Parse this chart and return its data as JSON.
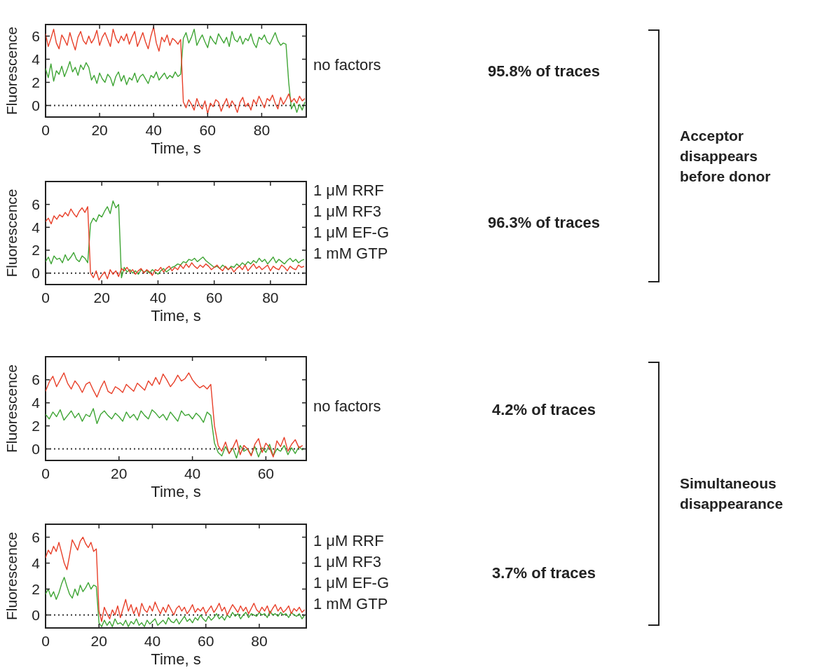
{
  "chart_data": [
    {
      "type": "line",
      "xlabel": "Time, s",
      "ylabel": "Fluorescence",
      "xlim": [
        0,
        96.5
      ],
      "ylim": [
        -1,
        7
      ],
      "xticks": [
        0,
        20,
        40,
        60,
        80
      ],
      "yticks": [
        0,
        2,
        4,
        6
      ],
      "ref_lines": [
        {
          "axis": "y",
          "value": 0,
          "color": "#333333",
          "line_style": "dotted"
        }
      ],
      "annotations": [
        "no factors",
        "95.8% of traces",
        "Acceptor\ndisappears\nbefore donor"
      ],
      "x": [
        0,
        1,
        2,
        3,
        4,
        5,
        6,
        7,
        8,
        9,
        10,
        11,
        12,
        13,
        14,
        15,
        16,
        17,
        18,
        19,
        20,
        21,
        22,
        23,
        24,
        25,
        26,
        27,
        28,
        29,
        30,
        31,
        32,
        33,
        34,
        35,
        36,
        37,
        38,
        39,
        40,
        41,
        42,
        43,
        44,
        45,
        46,
        47,
        48,
        49,
        50,
        51,
        52,
        53,
        54,
        55,
        56,
        57,
        58,
        59,
        60,
        61,
        62,
        63,
        64,
        65,
        66,
        67,
        68,
        69,
        70,
        71,
        72,
        73,
        74,
        75,
        76,
        77,
        78,
        79,
        80,
        81,
        82,
        83,
        84,
        85,
        86,
        87,
        88,
        89,
        90,
        91,
        92,
        93,
        94,
        95,
        96
      ],
      "series": [
        {
          "color": "#3fa535",
          "values": [
            3.2,
            2.4,
            3.6,
            2.1,
            3.0,
            2.7,
            3.4,
            2.5,
            3.1,
            3.8,
            2.9,
            3.3,
            2.6,
            3.5,
            3.1,
            3.7,
            3.3,
            2.2,
            2.6,
            1.9,
            2.8,
            2.3,
            2.0,
            2.7,
            2.4,
            1.7,
            2.5,
            2.9,
            2.1,
            2.6,
            1.8,
            2.4,
            2.2,
            2.8,
            2.0,
            2.5,
            2.7,
            2.3,
            1.9,
            2.6,
            2.4,
            2.9,
            2.2,
            2.5,
            2.8,
            2.3,
            2.6,
            2.4,
            2.9,
            2.5,
            2.7,
            5.8,
            6.3,
            5.4,
            5.9,
            6.6,
            5.2,
            5.7,
            6.1,
            5.5,
            5.0,
            6.0,
            5.6,
            5.3,
            6.2,
            5.8,
            5.4,
            5.9,
            5.1,
            6.4,
            5.7,
            5.5,
            6.0,
            5.3,
            5.8,
            5.6,
            6.2,
            5.4,
            5.0,
            5.9,
            5.7,
            6.1,
            5.5,
            5.3,
            5.8,
            6.3,
            5.6,
            5.2,
            5.4,
            5.3,
            2.0,
            -0.3,
            0.2,
            -0.6,
            0.1,
            -0.4,
            0.3
          ]
        },
        {
          "color": "#e8402a",
          "values": [
            6.2,
            5.1,
            5.8,
            6.6,
            5.4,
            4.9,
            6.1,
            5.7,
            5.2,
            6.3,
            5.5,
            4.8,
            5.9,
            6.4,
            5.6,
            5.3,
            6.0,
            5.4,
            5.8,
            6.5,
            5.2,
            5.9,
            6.3,
            5.7,
            5.1,
            6.6,
            5.8,
            5.4,
            6.0,
            5.6,
            6.2,
            5.3,
            5.9,
            6.4,
            5.1,
            5.7,
            6.3,
            5.5,
            4.9,
            6.0,
            6.8,
            5.4,
            4.7,
            5.9,
            5.5,
            6.1,
            5.2,
            5.8,
            5.6,
            5.3,
            5.7,
            0.3,
            -0.2,
            0.5,
            0.1,
            -0.4,
            0.6,
            0.0,
            -0.3,
            0.4,
            -0.7,
            0.2,
            -0.1,
            0.5,
            0.3,
            -0.5,
            0.1,
            0.6,
            -0.2,
            0.4,
            0.0,
            -0.6,
            0.3,
            0.7,
            -0.1,
            0.2,
            -0.4,
            0.5,
            0.1,
            0.8,
            0.3,
            -0.2,
            0.6,
            0.4,
            0.9,
            0.2,
            -0.3,
            0.7,
            0.1,
            0.5,
            1.0,
            0.3,
            0.6,
            0.2,
            0.8,
            0.4,
            0.6
          ]
        }
      ]
    },
    {
      "type": "line",
      "xlabel": "Time, s",
      "ylabel": "Fluorescence",
      "xlim": [
        0,
        92.75
      ],
      "ylim": [
        -1,
        8
      ],
      "xticks": [
        0,
        20,
        40,
        60,
        80
      ],
      "yticks": [
        0,
        2,
        4,
        6
      ],
      "ref_lines": [
        {
          "axis": "y",
          "value": 0,
          "color": "#333333",
          "line_style": "dotted"
        }
      ],
      "annotations": [
        "1 μM RRF\n1 μM RF3\n1 μM EF-G\n1 mM GTP",
        "96.3% of traces"
      ],
      "x": [
        0,
        1,
        2,
        3,
        4,
        5,
        6,
        7,
        8,
        9,
        10,
        11,
        12,
        13,
        14,
        15,
        16,
        17,
        18,
        19,
        20,
        21,
        22,
        23,
        24,
        25,
        26,
        27,
        28,
        29,
        30,
        31,
        32,
        33,
        34,
        35,
        36,
        37,
        38,
        39,
        40,
        41,
        42,
        43,
        44,
        45,
        46,
        47,
        48,
        49,
        50,
        51,
        52,
        53,
        54,
        55,
        56,
        57,
        58,
        59,
        60,
        61,
        62,
        63,
        64,
        65,
        66,
        67,
        68,
        69,
        70,
        71,
        72,
        73,
        74,
        75,
        76,
        77,
        78,
        79,
        80,
        81,
        82,
        83,
        84,
        85,
        86,
        87,
        88,
        89,
        90,
        91,
        92
      ],
      "series": [
        {
          "color": "#3fa535",
          "values": [
            1.0,
            1.4,
            0.8,
            1.5,
            1.2,
            1.3,
            0.9,
            1.6,
            1.1,
            1.4,
            1.8,
            1.2,
            1.0,
            1.5,
            1.3,
            0.9,
            4.3,
            4.8,
            4.5,
            5.1,
            4.9,
            5.4,
            5.8,
            5.2,
            6.3,
            5.7,
            6.0,
            -0.4,
            0.5,
            0.1,
            0.3,
            0.0,
            0.2,
            -0.1,
            0.3,
            0.1,
            0.2,
            0.0,
            0.3,
            0.1,
            -0.1,
            0.2,
            0.4,
            0.1,
            0.3,
            0.5,
            0.6,
            0.8,
            0.7,
            1.0,
            0.9,
            1.2,
            1.1,
            1.3,
            1.0,
            1.2,
            1.4,
            1.1,
            0.9,
            0.7,
            0.5,
            0.6,
            0.4,
            0.7,
            0.5,
            0.3,
            0.6,
            0.5,
            0.8,
            0.6,
            0.9,
            0.7,
            1.0,
            0.8,
            1.1,
            0.9,
            1.3,
            1.0,
            1.2,
            0.8,
            1.1,
            1.4,
            0.9,
            1.2,
            1.0,
            0.8,
            1.1,
            1.3,
            1.0,
            1.2,
            0.9,
            1.1,
            1.2
          ]
        },
        {
          "color": "#e8402a",
          "values": [
            4.5,
            4.8,
            4.3,
            5.0,
            4.7,
            5.1,
            4.9,
            5.3,
            5.0,
            5.6,
            5.2,
            4.9,
            5.4,
            5.7,
            5.3,
            5.8,
            0.0,
            -0.4,
            0.2,
            -0.6,
            -0.2,
            0.1,
            -0.5,
            0.3,
            -0.1,
            0.2,
            -0.3,
            0.4,
            0.2,
            0.5,
            0.1,
            0.3,
            -0.1,
            0.2,
            0.4,
            0.0,
            0.3,
            0.1,
            -0.2,
            0.3,
            0.2,
            0.5,
            0.1,
            0.4,
            0.6,
            0.2,
            0.5,
            0.3,
            0.7,
            0.4,
            0.8,
            0.5,
            0.9,
            0.6,
            0.4,
            0.7,
            0.5,
            0.8,
            0.6,
            0.3,
            0.5,
            0.7,
            0.4,
            0.2,
            0.6,
            0.3,
            0.5,
            0.1,
            0.4,
            0.6,
            0.3,
            0.7,
            0.2,
            0.5,
            0.8,
            0.4,
            0.6,
            0.3,
            0.5,
            0.7,
            0.2,
            0.6,
            0.4,
            0.3,
            0.7,
            0.5,
            0.2,
            0.6,
            0.4,
            0.3,
            0.7,
            0.5,
            0.6
          ]
        }
      ]
    },
    {
      "type": "line",
      "xlabel": "Time, s",
      "ylabel": "Fluorescence",
      "xlim": [
        0,
        71
      ],
      "ylim": [
        -1,
        8
      ],
      "xticks": [
        0,
        20,
        40,
        60
      ],
      "yticks": [
        0,
        2,
        4,
        6
      ],
      "ref_lines": [
        {
          "axis": "y",
          "value": 0,
          "color": "#333333",
          "line_style": "dotted"
        }
      ],
      "annotations": [
        "no factors",
        "4.2% of traces",
        "Simultaneous\ndisappearance"
      ],
      "x": [
        0,
        1,
        2,
        3,
        4,
        5,
        6,
        7,
        8,
        9,
        10,
        11,
        12,
        13,
        14,
        15,
        16,
        17,
        18,
        19,
        20,
        21,
        22,
        23,
        24,
        25,
        26,
        27,
        28,
        29,
        30,
        31,
        32,
        33,
        34,
        35,
        36,
        37,
        38,
        39,
        40,
        41,
        42,
        43,
        44,
        45,
        46,
        47,
        48,
        49,
        50,
        51,
        52,
        53,
        54,
        55,
        56,
        57,
        58,
        59,
        60,
        61,
        62,
        63,
        64,
        65,
        66,
        67,
        68,
        69,
        70
      ],
      "series": [
        {
          "color": "#3fa535",
          "values": [
            3.0,
            2.6,
            3.2,
            2.8,
            3.4,
            2.5,
            2.9,
            3.3,
            2.7,
            3.1,
            2.4,
            3.0,
            2.8,
            3.5,
            2.2,
            3.0,
            3.3,
            2.9,
            2.6,
            3.1,
            2.8,
            2.4,
            3.2,
            2.7,
            3.0,
            2.5,
            3.3,
            2.9,
            2.6,
            3.4,
            3.1,
            2.7,
            3.0,
            2.5,
            3.2,
            2.8,
            2.4,
            3.3,
            2.9,
            3.0,
            2.6,
            3.1,
            2.8,
            2.3,
            3.2,
            2.9,
            0.5,
            -0.3,
            -0.6,
            0.2,
            -0.4,
            0.1,
            -0.8,
            0.3,
            -0.2,
            0.0,
            -0.5,
            0.2,
            -0.7,
            0.1,
            -0.3,
            0.4,
            -0.6,
            0.0,
            -0.2,
            0.3,
            -0.5,
            0.1,
            -0.4,
            0.2,
            -0.1
          ]
        },
        {
          "color": "#e8402a",
          "values": [
            5.0,
            5.8,
            6.3,
            5.4,
            6.0,
            6.6,
            5.7,
            5.2,
            5.9,
            5.5,
            4.9,
            5.6,
            5.8,
            5.1,
            4.5,
            5.3,
            5.9,
            5.0,
            4.8,
            5.4,
            5.2,
            4.9,
            5.6,
            5.3,
            5.0,
            5.7,
            5.4,
            5.1,
            5.9,
            5.5,
            6.2,
            5.6,
            6.5,
            6.0,
            5.4,
            5.8,
            6.4,
            5.9,
            6.1,
            6.6,
            6.0,
            5.6,
            5.3,
            5.5,
            5.2,
            5.6,
            2.0,
            0.3,
            -0.2,
            0.6,
            -0.4,
            0.1,
            0.8,
            -0.5,
            0.3,
            0.0,
            -0.6,
            0.4,
            0.9,
            -0.3,
            0.5,
            0.1,
            -0.7,
            0.7,
            0.2,
            1.0,
            -0.2,
            0.4,
            0.8,
            0.1,
            0.3
          ]
        }
      ]
    },
    {
      "type": "line",
      "xlabel": "Time, s",
      "ylabel": "Fluorescence",
      "xlim": [
        0,
        97.6
      ],
      "ylim": [
        -1,
        7
      ],
      "xticks": [
        0,
        20,
        40,
        60,
        80
      ],
      "yticks": [
        0,
        2,
        4,
        6
      ],
      "ref_lines": [
        {
          "axis": "y",
          "value": 0,
          "color": "#333333",
          "line_style": "dotted"
        }
      ],
      "annotations": [
        "1 μM RRF\n1 μM RF3\n1 μM EF-G\n1 mM GTP",
        "3.7% of traces"
      ],
      "x": [
        0,
        1,
        2,
        3,
        4,
        5,
        6,
        7,
        8,
        9,
        10,
        11,
        12,
        13,
        14,
        15,
        16,
        17,
        18,
        19,
        20,
        21,
        22,
        23,
        24,
        25,
        26,
        27,
        28,
        29,
        30,
        31,
        32,
        33,
        34,
        35,
        36,
        37,
        38,
        39,
        40,
        41,
        42,
        43,
        44,
        45,
        46,
        47,
        48,
        49,
        50,
        51,
        52,
        53,
        54,
        55,
        56,
        57,
        58,
        59,
        60,
        61,
        62,
        63,
        64,
        65,
        66,
        67,
        68,
        69,
        70,
        71,
        72,
        73,
        74,
        75,
        76,
        77,
        78,
        79,
        80,
        81,
        82,
        83,
        84,
        85,
        86,
        87,
        88,
        89,
        90,
        91,
        92,
        93,
        94,
        95,
        96,
        97
      ],
      "series": [
        {
          "color": "#3fa535",
          "values": [
            1.6,
            2.0,
            1.4,
            1.8,
            1.2,
            1.7,
            2.4,
            2.9,
            2.2,
            1.6,
            1.3,
            2.0,
            1.5,
            2.3,
            1.8,
            2.1,
            2.5,
            2.0,
            2.3,
            2.2,
            -0.6,
            -0.9,
            -0.4,
            -0.8,
            -0.5,
            -0.9,
            -0.3,
            -0.7,
            -0.6,
            -0.8,
            -0.4,
            -0.9,
            -0.5,
            -0.7,
            -0.3,
            -0.8,
            -0.6,
            -0.9,
            -0.4,
            -0.7,
            -0.5,
            -0.3,
            -0.8,
            -0.6,
            -0.4,
            -0.7,
            -0.2,
            -0.5,
            -0.6,
            -0.3,
            -0.7,
            -0.4,
            -0.1,
            -0.5,
            -0.3,
            -0.6,
            -0.2,
            -0.4,
            0.0,
            -0.3,
            -0.5,
            -0.1,
            -0.4,
            -0.2,
            0.1,
            -0.3,
            -0.1,
            -0.4,
            0.0,
            -0.2,
            0.2,
            -0.1,
            0.1,
            -0.3,
            0.0,
            0.2,
            -0.2,
            0.1,
            0.0,
            -0.1,
            0.2,
            0.0,
            0.1,
            -0.2,
            0.3,
            0.0,
            0.1,
            -0.1,
            0.2,
            0.0,
            0.1,
            -0.2,
            0.2,
            0.0,
            -0.1,
            0.1,
            -0.3,
            0.0
          ]
        },
        {
          "color": "#e8402a",
          "values": [
            4.4,
            5.0,
            4.7,
            5.3,
            4.9,
            5.6,
            4.8,
            4.0,
            3.5,
            4.6,
            5.8,
            5.4,
            5.0,
            5.7,
            6.0,
            5.5,
            5.2,
            5.6,
            4.9,
            5.1,
            0.3,
            -0.5,
            0.6,
            0.1,
            -0.3,
            0.4,
            0.0,
            0.7,
            -0.2,
            0.5,
            1.2,
            0.3,
            0.8,
            0.1,
            0.6,
            -0.1,
            0.9,
            0.4,
            0.2,
            0.7,
            0.3,
            1.0,
            0.5,
            0.1,
            0.6,
            0.2,
            0.8,
            0.4,
            0.0,
            0.5,
            0.7,
            0.3,
            0.6,
            0.1,
            0.4,
            0.8,
            0.2,
            0.5,
            0.3,
            0.6,
            0.1,
            0.4,
            0.7,
            0.2,
            0.5,
            0.9,
            0.3,
            0.6,
            0.0,
            0.4,
            0.8,
            0.5,
            0.2,
            0.7,
            0.3,
            0.6,
            0.1,
            0.5,
            0.9,
            0.4,
            0.2,
            0.6,
            0.3,
            0.7,
            0.1,
            0.5,
            0.8,
            0.3,
            0.6,
            0.2,
            0.4,
            0.7,
            0.1,
            0.5,
            0.3,
            0.6,
            0.2,
            0.4
          ]
        }
      ]
    }
  ]
}
